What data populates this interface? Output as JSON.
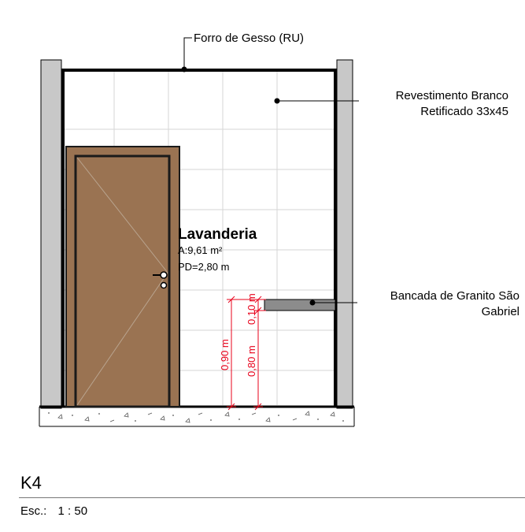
{
  "callouts": {
    "ceiling": "Forro de Gesso (RU)",
    "wall_tile_line1": "Revestimento Branco",
    "wall_tile_line2": "Retificado 33x45",
    "countertop_line1": "Bancada de Granito São",
    "countertop_line2": "Gabriel"
  },
  "room": {
    "name": "Lavanderia",
    "area": "A:9,61 m²",
    "ceiling_height": "PD=2,80 m"
  },
  "dimensions": {
    "total": "0,90 m",
    "lower": "0,80 m",
    "upper": "0,10 m",
    "color": "#e8001a"
  },
  "sheet": {
    "code": "K4",
    "scale_label": "Esc.:",
    "scale_value": "1 : 50"
  },
  "colors": {
    "door": "#9a7352",
    "wall_section": "#c8c8c8",
    "countertop": "#8c8c8c",
    "tile_joint": "#d6d6d6"
  }
}
